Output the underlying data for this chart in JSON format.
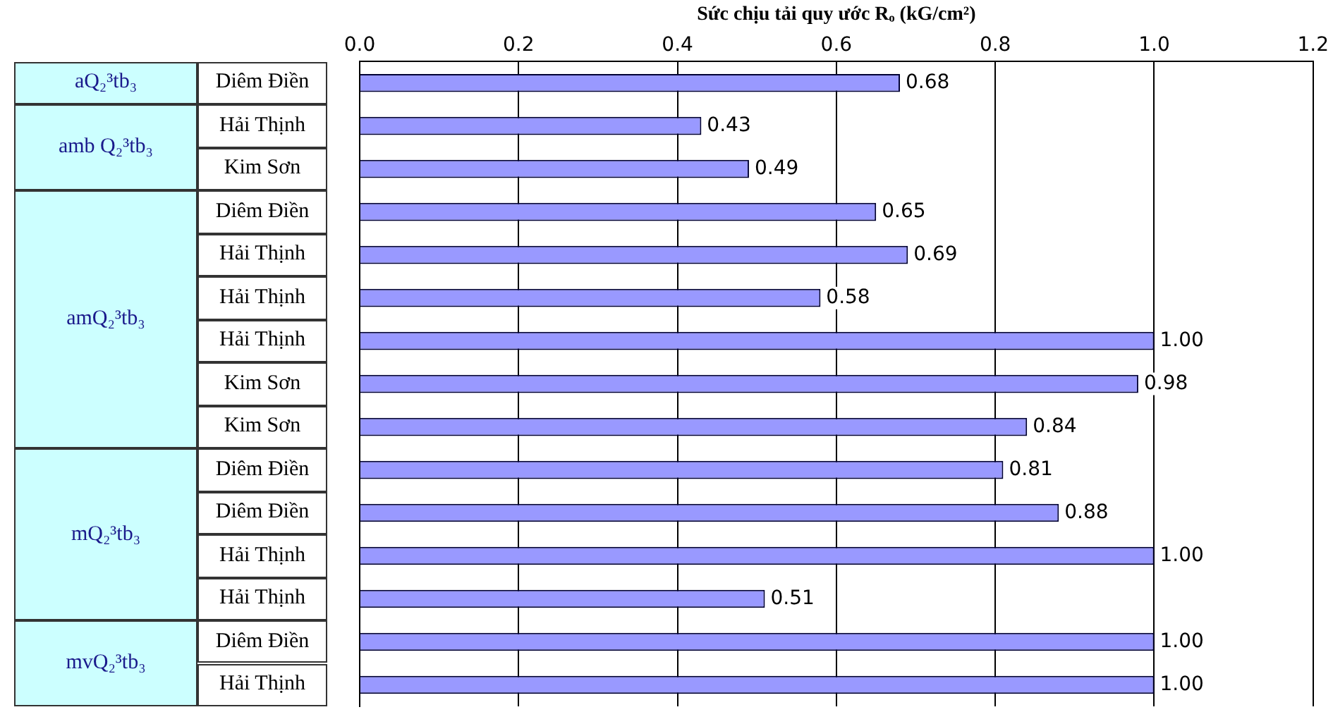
{
  "chart_data": {
    "type": "bar",
    "orientation": "horizontal",
    "xlabel": "Sức chịu tải quy ước Rₒ (kG/cm²)",
    "categories": [
      "Diêm Điền",
      "Hải Thịnh",
      "Kim Sơn",
      "Diêm Điền",
      "Hải Thịnh",
      "Hải Thịnh",
      "Hải Thịnh",
      "Kim Sơn",
      "Kim Sơn",
      "Diêm Điền",
      "Diêm Điền",
      "Hải Thịnh",
      "Hải Thịnh",
      "Diêm Điền",
      "Hải Thịnh"
    ],
    "values": [
      0.68,
      0.43,
      0.49,
      0.65,
      0.69,
      0.58,
      1,
      0.98,
      0.84,
      0.81,
      0.88,
      1,
      0.51,
      1,
      1
    ],
    "value_labels": [
      "0.68",
      "0.43",
      "0.49",
      "0.65",
      "0.69",
      "0.58",
      "1.00",
      "0.98",
      "0.84",
      "0.81",
      "0.88",
      "1.00",
      "0.51",
      "1.00",
      "1.00"
    ],
    "color": "#9999ff",
    "annotations": [
      "aQ₂³tb₃",
      "amb Q₂³tb₃",
      "amQ₂³tb₃",
      "mQ₂³tb₃",
      "mvQ₂³tb₃"
    ],
    "xlim": [
      0,
      1.2
    ],
    "xticks": [
      {
        "value": 0,
        "label": "0.0"
      },
      {
        "value": 0.2,
        "label": "0.2"
      },
      {
        "value": 0.4,
        "label": "0.4"
      },
      {
        "value": 0.6,
        "label": "0.6"
      },
      {
        "value": 0.8,
        "label": "0.8"
      },
      {
        "value": 1,
        "label": "1.0"
      },
      {
        "value": 1.2,
        "label": "1.2"
      }
    ],
    "grid": "x",
    "legend": false
  }
}
